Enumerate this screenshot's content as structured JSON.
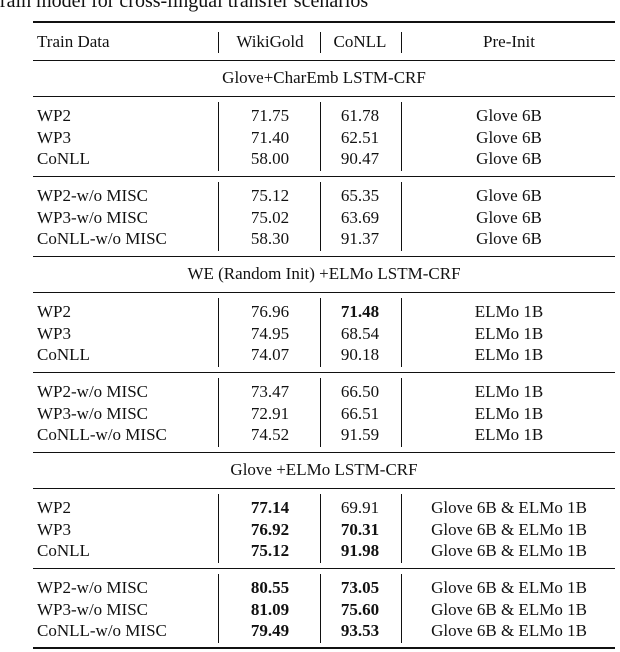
{
  "caption": "rain model for cross-lingual transfer scenarios",
  "table": {
    "header": [
      "Train Data",
      "WikiGold",
      "CoNLL",
      "Pre-Init"
    ],
    "sections": [
      {
        "title": "Glove+CharEmb LSTM-CRF",
        "groups": [
          [
            [
              "WP2",
              "71.75",
              "61.78",
              "Glove 6B"
            ],
            [
              "WP3",
              "71.40",
              "62.51",
              "Glove 6B"
            ],
            [
              "CoNLL",
              "58.00",
              "90.47",
              "Glove 6B"
            ]
          ],
          [
            [
              "WP2-w/o MISC",
              "75.12",
              "65.35",
              "Glove 6B"
            ],
            [
              "WP3-w/o MISC",
              "75.02",
              "63.69",
              "Glove 6B"
            ],
            [
              "CoNLL-w/o MISC",
              "58.30",
              "91.37",
              "Glove 6B"
            ]
          ]
        ]
      },
      {
        "title": "WE (Random Init) +ELMo LSTM-CRF",
        "groups": [
          [
            [
              "WP2",
              "76.96",
              {
                "text": "71.48",
                "bold": true
              },
              "ELMo 1B"
            ],
            [
              "WP3",
              "74.95",
              "68.54",
              "ELMo 1B"
            ],
            [
              "CoNLL",
              "74.07",
              "90.18",
              "ELMo 1B"
            ]
          ],
          [
            [
              "WP2-w/o MISC",
              "73.47",
              "66.50",
              "ELMo 1B"
            ],
            [
              "WP3-w/o MISC",
              "72.91",
              "66.51",
              "ELMo 1B"
            ],
            [
              "CoNLL-w/o MISC",
              "74.52",
              "91.59",
              "ELMo 1B"
            ]
          ]
        ]
      },
      {
        "title": "Glove +ELMo LSTM-CRF",
        "groups": [
          [
            [
              "WP2",
              {
                "text": "77.14",
                "bold": true
              },
              "69.91",
              "Glove 6B & ELMo 1B"
            ],
            [
              "WP3",
              {
                "text": "76.92",
                "bold": true
              },
              {
                "text": "70.31",
                "bold": true
              },
              "Glove 6B & ELMo 1B"
            ],
            [
              "CoNLL",
              {
                "text": "75.12",
                "bold": true
              },
              {
                "text": "91.98",
                "bold": true
              },
              "Glove 6B & ELMo 1B"
            ]
          ],
          [
            [
              "WP2-w/o MISC",
              {
                "text": "80.55",
                "bold": true
              },
              {
                "text": "73.05",
                "bold": true
              },
              "Glove 6B & ELMo 1B"
            ],
            [
              "WP3-w/o MISC",
              {
                "text": "81.09",
                "bold": true
              },
              {
                "text": "75.60",
                "bold": true
              },
              "Glove 6B & ELMo 1B"
            ],
            [
              "CoNLL-w/o MISC",
              {
                "text": "79.49",
                "bold": true
              },
              {
                "text": "93.53",
                "bold": true
              },
              "Glove 6B & ELMo 1B"
            ]
          ]
        ]
      }
    ]
  }
}
